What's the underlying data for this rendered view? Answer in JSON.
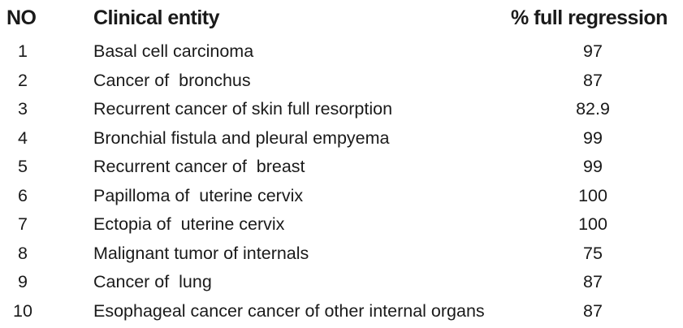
{
  "table": {
    "headers": {
      "no": "NO",
      "entity": "Clinical entity",
      "pct": "% full regression"
    },
    "rows": [
      {
        "no": "1",
        "entity": "Basal cell carcinoma",
        "pct": "97"
      },
      {
        "no": "2",
        "entity": "Cancer of  bronchus",
        "pct": "87"
      },
      {
        "no": "3",
        "entity": "Recurrent cancer of skin full resorption",
        "pct": "82.9"
      },
      {
        "no": "4",
        "entity": "Bronchial fistula and pleural empyema",
        "pct": "99"
      },
      {
        "no": "5",
        "entity": "Recurrent cancer of  breast",
        "pct": "99"
      },
      {
        "no": "6",
        "entity": "Papilloma of  uterine cervix",
        "pct": "100"
      },
      {
        "no": "7",
        "entity": "Ectopia of  uterine cervix",
        "pct": "100"
      },
      {
        "no": "8",
        "entity": "Malignant tumor of internals",
        "pct": "75"
      },
      {
        "no": "9",
        "entity": "Cancer of  lung",
        "pct": "87"
      },
      {
        "no": "10",
        "entity": "Esophageal cancer cancer of other internal organs",
        "pct": "87"
      }
    ]
  }
}
